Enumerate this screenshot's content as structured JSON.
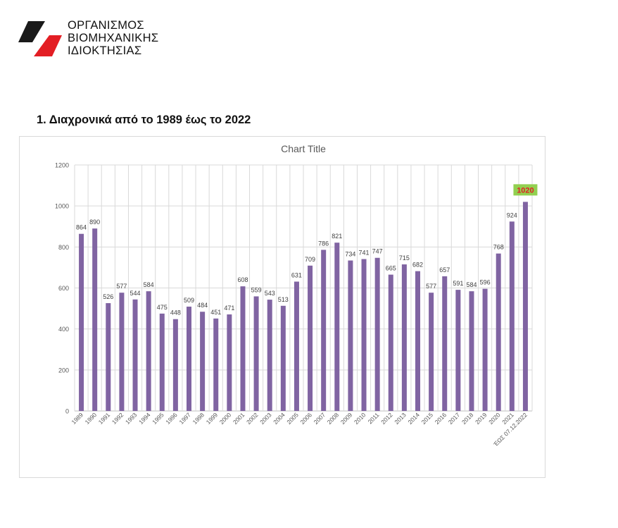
{
  "organization": {
    "name_lines": [
      "ΟΡΓΑΝΙΣΜΟΣ",
      "ΒΙΟΜΗΧΑΝΙΚΗΣ",
      "ΙΔΙΟΚΤΗΣΙΑΣ"
    ],
    "logo_colors": {
      "dark": "#1a1a1a",
      "red": "#e31e24"
    }
  },
  "section": {
    "heading": "1.  Διαχρονικά από το 1989 έως το 2022"
  },
  "chart_data": {
    "type": "bar",
    "title": "Chart Title",
    "xlabel": "",
    "ylabel": "",
    "ylim": [
      0,
      1200
    ],
    "yticks": [
      0,
      200,
      400,
      600,
      800,
      1000,
      1200
    ],
    "grid": true,
    "bar_color": "#8064a2",
    "categories": [
      "1989",
      "1990",
      "1991",
      "1992",
      "1993",
      "1994",
      "1995",
      "1996",
      "1997",
      "1998",
      "1999",
      "2000",
      "2001",
      "2002",
      "2003",
      "2004",
      "2005",
      "2006",
      "2007",
      "2008",
      "2009",
      "2010",
      "2011",
      "2012",
      "2013",
      "2014",
      "2015",
      "2016",
      "2017",
      "2018",
      "2019",
      "2020",
      "2021",
      "ΈΩΣ 07.12.2022"
    ],
    "values": [
      864,
      890,
      526,
      577,
      544,
      584,
      475,
      448,
      509,
      484,
      451,
      471,
      608,
      559,
      543,
      513,
      631,
      709,
      786,
      821,
      734,
      741,
      747,
      665,
      715,
      682,
      577,
      657,
      591,
      584,
      596,
      768,
      924,
      1020
    ],
    "highlight": {
      "index": 33,
      "label_color": "#e31e24",
      "box_color": "#92d050"
    }
  }
}
